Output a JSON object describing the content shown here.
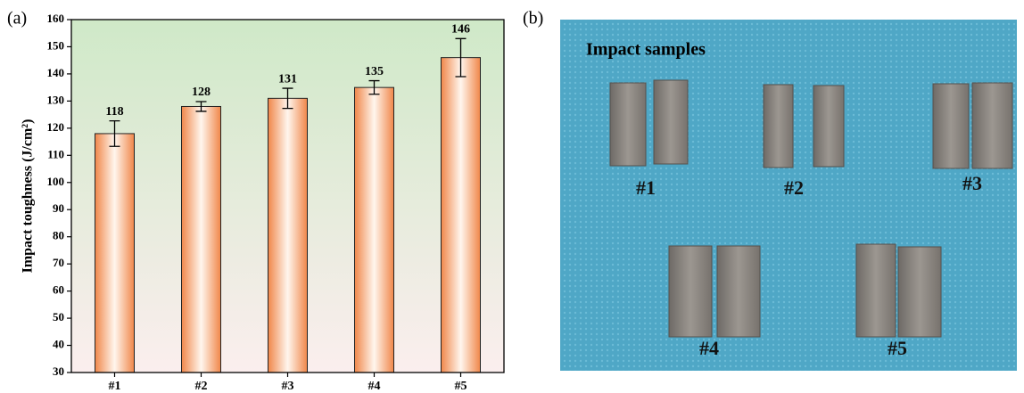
{
  "panel_labels": [
    "(a)",
    "(b)"
  ],
  "chart_data": {
    "type": "bar",
    "ylabel": "Impact toughness (J/cm²)",
    "categories": [
      "#1",
      "#2",
      "#3",
      "#4",
      "#5"
    ],
    "values": [
      118,
      128,
      131,
      135,
      146
    ],
    "errors": [
      4.7,
      1.8,
      3.7,
      2.5,
      7
    ],
    "color": "#f0874a",
    "ylim": [
      30,
      160
    ],
    "yticks": [
      30,
      40,
      50,
      60,
      70,
      80,
      90,
      100,
      110,
      120,
      130,
      140,
      150,
      160
    ]
  },
  "photo": {
    "title": "Impact samples",
    "labels": [
      "#1",
      "#2",
      "#3",
      "#4",
      "#5"
    ]
  }
}
